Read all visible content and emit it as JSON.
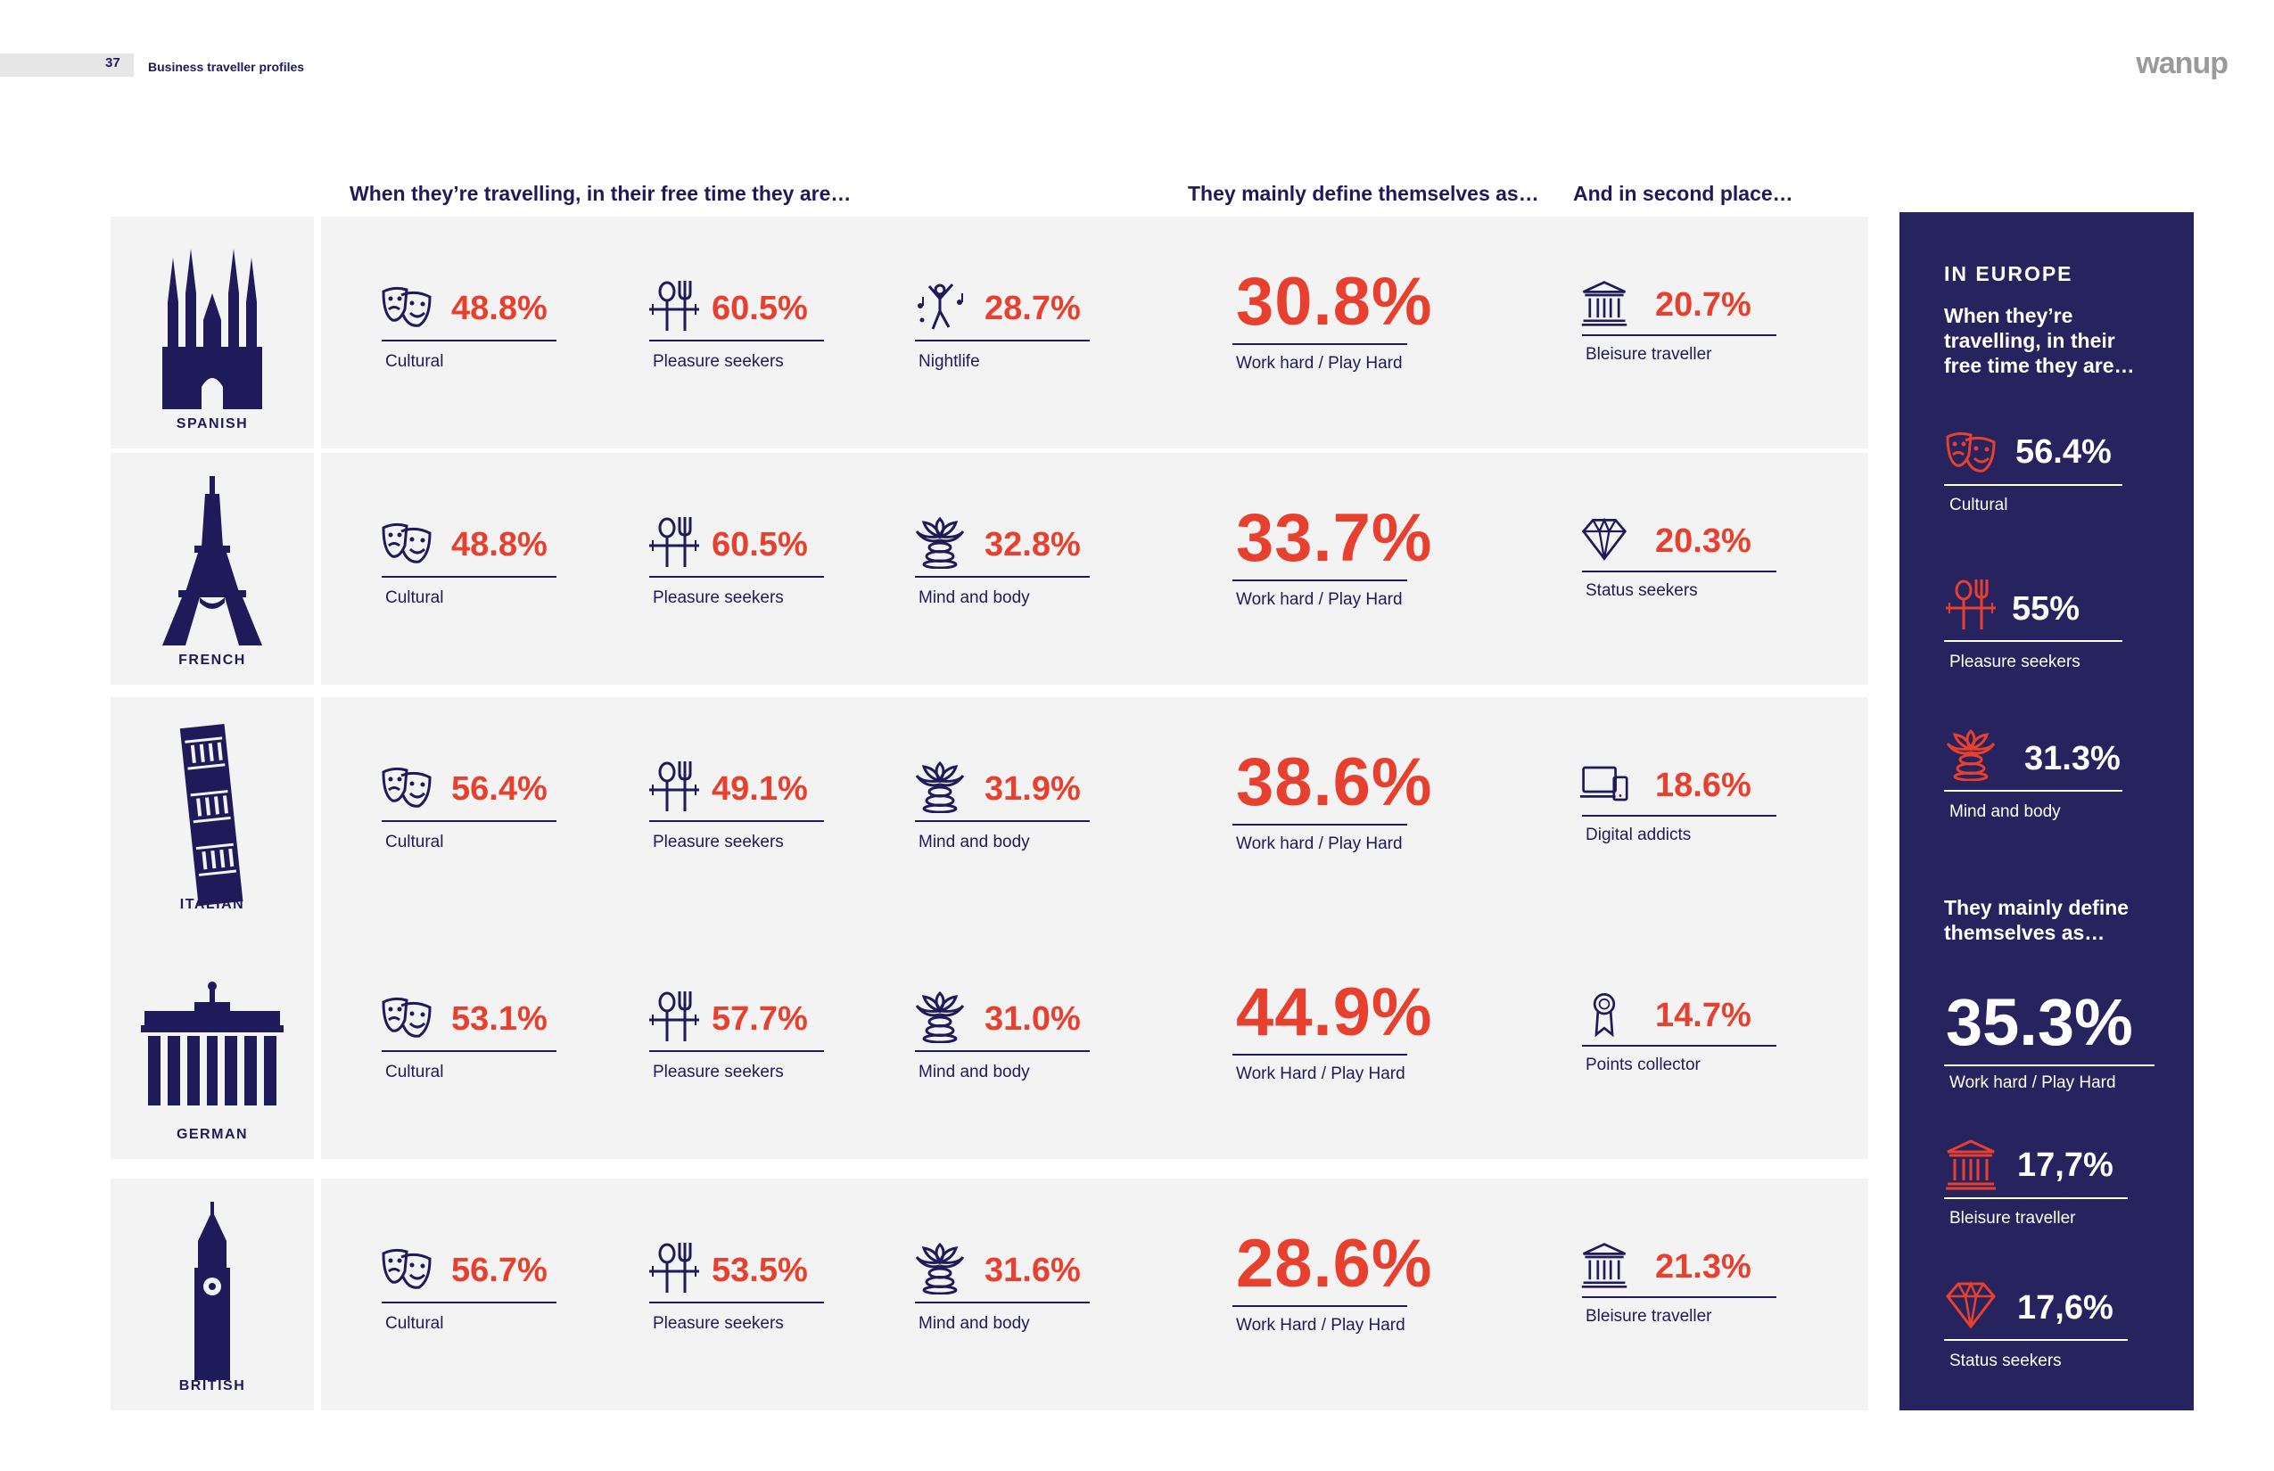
{
  "header": {
    "page_number": "37",
    "section": "Business traveller profiles",
    "logo": "wanup"
  },
  "headings": {
    "free_time": "When they’re travelling, in their free time they are…",
    "define": "They mainly define themselves as…",
    "second": "And in second place…"
  },
  "rows": [
    {
      "country": "SPANISH",
      "landmark_icon": "sagrada-familia-icon",
      "a": {
        "value": "48.8%",
        "label": "Cultural",
        "icon": "theatre-masks-icon"
      },
      "b": {
        "value": "60.5%",
        "label": "Pleasure seekers",
        "icon": "cutlery-icon"
      },
      "c": {
        "value": "28.7%",
        "label": "Nightlife",
        "icon": "dancer-icon"
      },
      "main": {
        "value": "30.8%",
        "label": "Work hard / Play Hard"
      },
      "second": {
        "value": "20.7%",
        "label": "Bleisure traveller",
        "icon": "museum-icon"
      }
    },
    {
      "country": "FRENCH",
      "landmark_icon": "eiffel-tower-icon",
      "a": {
        "value": "48.8%",
        "label": "Cultural",
        "icon": "theatre-masks-icon"
      },
      "b": {
        "value": "60.5%",
        "label": "Pleasure seekers",
        "icon": "cutlery-icon"
      },
      "c": {
        "value": "32.8%",
        "label": "Mind and body",
        "icon": "lotus-stones-icon"
      },
      "main": {
        "value": "33.7%",
        "label": "Work hard / Play Hard"
      },
      "second": {
        "value": "20.3%",
        "label": "Status seekers",
        "icon": "diamond-icon"
      }
    },
    {
      "country": "ITALIAN",
      "landmark_icon": "leaning-tower-icon",
      "a": {
        "value": "56.4%",
        "label": "Cultural",
        "icon": "theatre-masks-icon"
      },
      "b": {
        "value": "49.1%",
        "label": "Pleasure seekers",
        "icon": "cutlery-icon"
      },
      "c": {
        "value": "31.9%",
        "label": "Mind and body",
        "icon": "lotus-stones-icon"
      },
      "main": {
        "value": "38.6%",
        "label": "Work hard / Play Hard"
      },
      "second": {
        "value": "18.6%",
        "label": "Digital addicts",
        "icon": "laptop-phone-icon"
      }
    },
    {
      "country": "GERMAN",
      "landmark_icon": "brandenburg-gate-icon",
      "a": {
        "value": "53.1%",
        "label": "Cultural",
        "icon": "theatre-masks-icon"
      },
      "b": {
        "value": "57.7%",
        "label": "Pleasure seekers",
        "icon": "cutlery-icon"
      },
      "c": {
        "value": "31.0%",
        "label": "Mind and body",
        "icon": "lotus-stones-icon"
      },
      "main": {
        "value": "44.9%",
        "label": "Work Hard / Play Hard"
      },
      "second": {
        "value": "14.7%",
        "label": "Points collector",
        "icon": "award-badge-icon"
      }
    },
    {
      "country": "BRITISH",
      "landmark_icon": "big-ben-icon",
      "a": {
        "value": "56.7%",
        "label": "Cultural",
        "icon": "theatre-masks-icon"
      },
      "b": {
        "value": "53.5%",
        "label": "Pleasure seekers",
        "icon": "cutlery-icon"
      },
      "c": {
        "value": "31.6%",
        "label": "Mind and body",
        "icon": "lotus-stones-icon"
      },
      "main": {
        "value": "28.6%",
        "label": "Work Hard / Play Hard"
      },
      "second": {
        "value": "21.3%",
        "label": "Bleisure traveller",
        "icon": "museum-icon"
      }
    }
  ],
  "europe": {
    "title": "IN EUROPE",
    "subtitle": "When they’re travelling, in their free time they are…",
    "items": [
      {
        "value": "56.4%",
        "label": "Cultural",
        "icon": "theatre-masks-icon"
      },
      {
        "value": "55%",
        "label": "Pleasure seekers",
        "icon": "cutlery-icon"
      },
      {
        "value": "31.3%",
        "label": "Mind and body",
        "icon": "lotus-stones-icon"
      }
    ],
    "define_title": "They mainly define themselves as…",
    "main": {
      "value": "35.3%",
      "label": "Work hard / Play Hard"
    },
    "others": [
      {
        "value": "17,7%",
        "label": "Bleisure traveller",
        "icon": "museum-icon"
      },
      {
        "value": "17,6%",
        "label": "Status seekers",
        "icon": "diamond-icon"
      }
    ]
  },
  "colors": {
    "navy": "#1f1a5a",
    "panel": "#27235e",
    "accent": "#e8402e",
    "row_bg": "#f3f3f3"
  }
}
